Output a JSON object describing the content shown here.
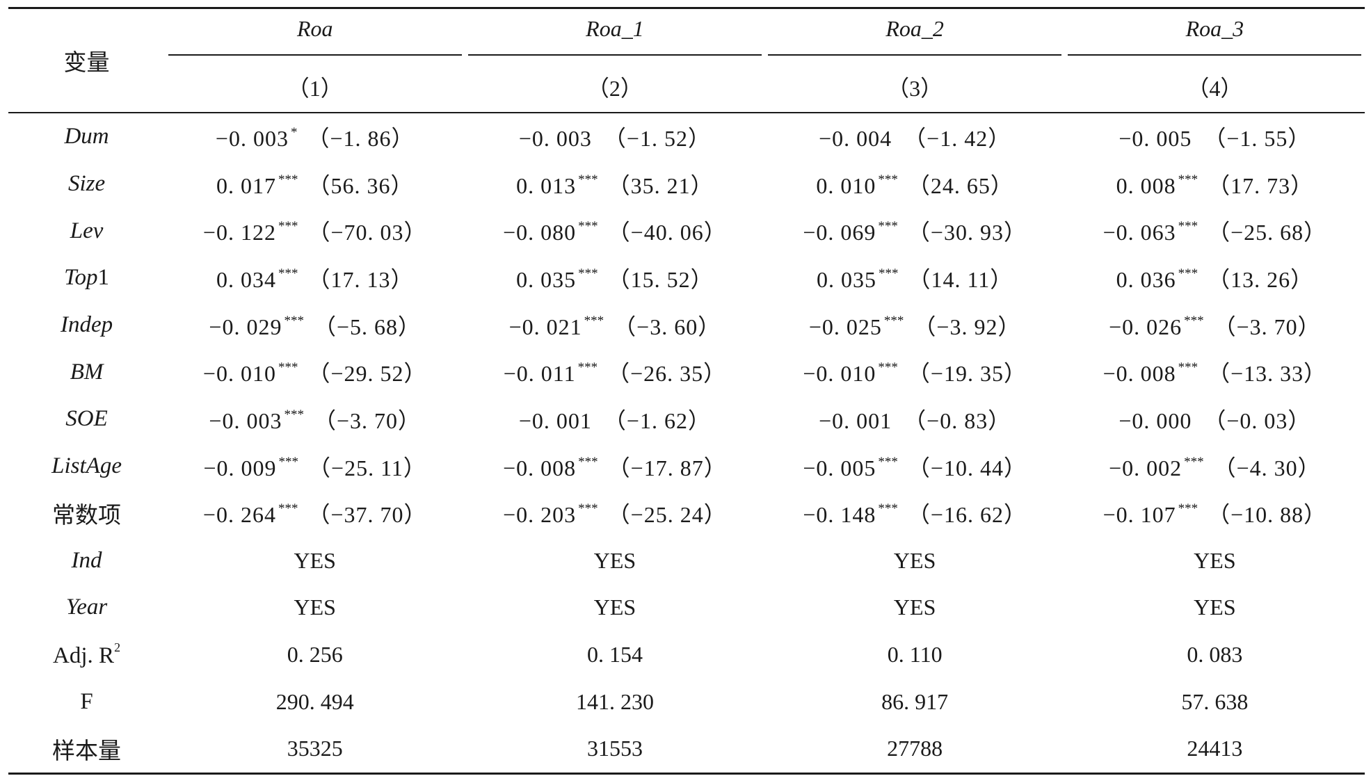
{
  "header": {
    "row_label": "变量",
    "dep_vars": [
      "Roa",
      "Roa_1",
      "Roa_2",
      "Roa_3"
    ],
    "col_numbers": [
      "（1）",
      "（2）",
      "（3）",
      "（4）"
    ]
  },
  "rows": [
    {
      "label": "Dum",
      "italic": true,
      "cells": [
        {
          "coef": "−0. 003",
          "stars": "*",
          "t": "（−1. 86）"
        },
        {
          "coef": "−0. 003",
          "stars": "",
          "t": "（−1. 52）"
        },
        {
          "coef": "−0. 004",
          "stars": "",
          "t": "（−1. 42）"
        },
        {
          "coef": "−0. 005",
          "stars": "",
          "t": "（−1. 55）"
        }
      ]
    },
    {
      "label": "Size",
      "italic": true,
      "cells": [
        {
          "coef": "0. 017",
          "stars": "***",
          "t": "（56. 36）"
        },
        {
          "coef": "0. 013",
          "stars": "***",
          "t": "（35. 21）"
        },
        {
          "coef": "0. 010",
          "stars": "***",
          "t": "（24. 65）"
        },
        {
          "coef": "0. 008",
          "stars": "***",
          "t": "（17. 73）"
        }
      ]
    },
    {
      "label": "Lev",
      "italic": true,
      "cells": [
        {
          "coef": "−0. 122",
          "stars": "***",
          "t": "（−70. 03）"
        },
        {
          "coef": "−0. 080",
          "stars": "***",
          "t": "（−40. 06）"
        },
        {
          "coef": "−0. 069",
          "stars": "***",
          "t": "（−30. 93）"
        },
        {
          "coef": "−0. 063",
          "stars": "***",
          "t": "（−25. 68）"
        }
      ]
    },
    {
      "label_italic": "Top",
      "label_plain": "1",
      "cells": [
        {
          "coef": "0. 034",
          "stars": "***",
          "t": "（17. 13）"
        },
        {
          "coef": "0. 035",
          "stars": "***",
          "t": "（15. 52）"
        },
        {
          "coef": "0. 035",
          "stars": "***",
          "t": "（14. 11）"
        },
        {
          "coef": "0. 036",
          "stars": "***",
          "t": "（13. 26）"
        }
      ]
    },
    {
      "label": "Indep",
      "italic": true,
      "cells": [
        {
          "coef": "−0. 029",
          "stars": "***",
          "t": "（−5. 68）"
        },
        {
          "coef": "−0. 021",
          "stars": "***",
          "t": "（−3. 60）"
        },
        {
          "coef": "−0. 025",
          "stars": "***",
          "t": "（−3. 92）"
        },
        {
          "coef": "−0. 026",
          "stars": "***",
          "t": "（−3. 70）"
        }
      ]
    },
    {
      "label": "BM",
      "italic": true,
      "cells": [
        {
          "coef": "−0. 010",
          "stars": "***",
          "t": "（−29. 52）"
        },
        {
          "coef": "−0. 011",
          "stars": "***",
          "t": "（−26. 35）"
        },
        {
          "coef": "−0. 010",
          "stars": "***",
          "t": "（−19. 35）"
        },
        {
          "coef": "−0. 008",
          "stars": "***",
          "t": "（−13. 33）"
        }
      ]
    },
    {
      "label": "SOE",
      "italic": true,
      "cells": [
        {
          "coef": "−0. 003",
          "stars": "***",
          "t": "（−3. 70）"
        },
        {
          "coef": "−0. 001",
          "stars": "",
          "t": "（−1. 62）"
        },
        {
          "coef": "−0. 001",
          "stars": "",
          "t": "（−0. 83）"
        },
        {
          "coef": "−0. 000",
          "stars": "",
          "t": "（−0. 03）"
        }
      ]
    },
    {
      "label": "ListAge",
      "italic": true,
      "cells": [
        {
          "coef": "−0. 009",
          "stars": "***",
          "t": "（−25. 11）"
        },
        {
          "coef": "−0. 008",
          "stars": "***",
          "t": "（−17. 87）"
        },
        {
          "coef": "−0. 005",
          "stars": "***",
          "t": "（−10. 44）"
        },
        {
          "coef": "−0. 002",
          "stars": "***",
          "t": "（−4. 30）"
        }
      ]
    },
    {
      "label": "常数项",
      "italic": false,
      "cells": [
        {
          "coef": "−0. 264",
          "stars": "***",
          "t": "（−37. 70）"
        },
        {
          "coef": "−0. 203",
          "stars": "***",
          "t": "（−25. 24）"
        },
        {
          "coef": "−0. 148",
          "stars": "***",
          "t": "（−16. 62）"
        },
        {
          "coef": "−0. 107",
          "stars": "***",
          "t": "（−10. 88）"
        }
      ]
    },
    {
      "label": "Ind",
      "italic": true,
      "values": [
        "YES",
        "YES",
        "YES",
        "YES"
      ]
    },
    {
      "label": "Year",
      "italic": true,
      "values": [
        "YES",
        "YES",
        "YES",
        "YES"
      ]
    },
    {
      "label_plain": "Adj. R",
      "label_sup": "2",
      "values": [
        "0. 256",
        "0. 154",
        "0. 110",
        "0. 083"
      ]
    },
    {
      "label": "F",
      "italic": false,
      "values": [
        "290. 494",
        "141. 230",
        "86. 917",
        "57. 638"
      ]
    },
    {
      "label": "样本量",
      "italic": false,
      "values": [
        "35325",
        "31553",
        "27788",
        "24413"
      ]
    }
  ]
}
